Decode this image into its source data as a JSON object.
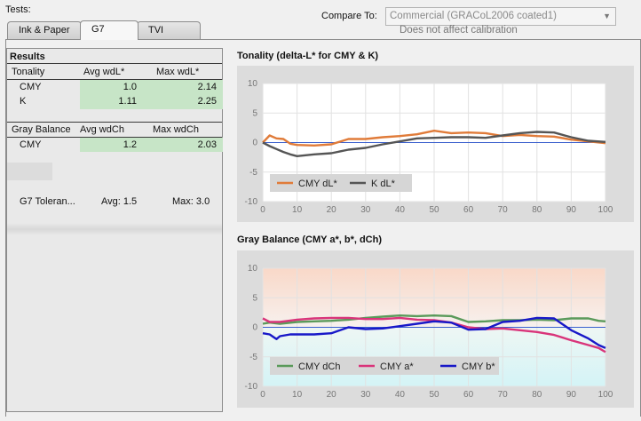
{
  "header": {
    "tests_label": "Tests:",
    "tabs": [
      {
        "label": "Ink & Paper",
        "active": false
      },
      {
        "label": "G7",
        "active": true
      },
      {
        "label": "TVI",
        "active": false
      }
    ],
    "compare_label": "Compare To:",
    "compare_value": "Commercial (GRACoL2006 coated1)",
    "compare_note": "Does not affect calibration"
  },
  "results": {
    "title": "Results",
    "tonality": {
      "headers": [
        "Tonality",
        "Avg wdL*",
        "Max wdL*"
      ],
      "rows": [
        {
          "label": "CMY",
          "avg": "1.0",
          "max": "2.14"
        },
        {
          "label": "K",
          "avg": "1.11",
          "max": "2.25"
        }
      ]
    },
    "gray_balance": {
      "headers": [
        "Gray Balance",
        "Avg wdCh",
        "Max wdCh"
      ],
      "rows": [
        {
          "label": "CMY",
          "avg": "1.2",
          "max": "2.03"
        }
      ]
    },
    "tolerance": {
      "label": "G7 Toleran...",
      "avg": "Avg: 1.5",
      "max": "Max: 3.0"
    }
  },
  "colors": {
    "cmy_dl": "#e07b39",
    "k_dl": "#555555",
    "cmy_dch": "#5a9a5a",
    "cmy_a": "#d9347a",
    "cmy_b": "#1818c8",
    "highlight": "#c7e5c7"
  },
  "chart_data": [
    {
      "type": "line",
      "title": "Tonality (delta-L* for CMY & K)",
      "xlim": [
        0,
        100
      ],
      "ylim": [
        -10,
        10
      ],
      "xticks": [
        "0",
        "10",
        "20",
        "30",
        "40",
        "50",
        "60",
        "70",
        "80",
        "90",
        "100"
      ],
      "yticks": [
        "10",
        "5",
        "0",
        "-5",
        "-10"
      ],
      "legend_position": "bottom-left",
      "series": [
        {
          "name": "CMY dL*",
          "color": "#e07b39",
          "x": [
            0,
            2,
            4,
            6,
            8,
            10,
            15,
            20,
            25,
            30,
            35,
            40,
            45,
            50,
            55,
            60,
            65,
            70,
            75,
            80,
            85,
            90,
            95,
            100
          ],
          "y": [
            0,
            1.2,
            0.7,
            0.6,
            -0.2,
            -0.4,
            -0.5,
            -0.3,
            0.6,
            0.6,
            0.9,
            1.1,
            1.4,
            2.0,
            1.6,
            1.7,
            1.6,
            1.1,
            1.3,
            1.1,
            1.0,
            0.5,
            0.2,
            -0.1
          ]
        },
        {
          "name": "K dL*",
          "color": "#555555",
          "x": [
            0,
            2,
            4,
            6,
            8,
            10,
            15,
            20,
            25,
            30,
            35,
            40,
            45,
            50,
            55,
            60,
            65,
            70,
            75,
            80,
            85,
            90,
            95,
            100
          ],
          "y": [
            0,
            -0.6,
            -1.1,
            -1.6,
            -2.0,
            -2.3,
            -2.0,
            -1.8,
            -1.2,
            -0.9,
            -0.3,
            0.2,
            0.7,
            0.8,
            0.9,
            0.9,
            0.8,
            1.2,
            1.6,
            1.8,
            1.7,
            0.9,
            0.3,
            0.1
          ]
        }
      ]
    },
    {
      "type": "line",
      "title": "Gray Balance (CMY a*, b*, dCh)",
      "xlim": [
        0,
        100
      ],
      "ylim": [
        -10,
        10
      ],
      "xticks": [
        "0",
        "10",
        "20",
        "30",
        "40",
        "50",
        "60",
        "70",
        "80",
        "90",
        "100"
      ],
      "yticks": [
        "10",
        "5",
        "0",
        "-5",
        "-10"
      ],
      "legend_position": "bottom-left",
      "series": [
        {
          "name": "CMY dCh",
          "color": "#5a9a5a",
          "x": [
            0,
            2,
            5,
            10,
            15,
            20,
            25,
            30,
            35,
            40,
            45,
            50,
            55,
            60,
            65,
            70,
            75,
            80,
            85,
            90,
            95,
            98,
            100
          ],
          "y": [
            0.6,
            0.8,
            0.6,
            0.9,
            1.0,
            1.1,
            1.3,
            1.6,
            1.8,
            2.0,
            1.9,
            2.0,
            1.9,
            0.9,
            1.0,
            1.2,
            1.2,
            1.3,
            1.2,
            1.5,
            1.5,
            1.1,
            1.0
          ]
        },
        {
          "name": "CMY a*",
          "color": "#d9347a",
          "x": [
            0,
            2,
            5,
            10,
            15,
            20,
            25,
            30,
            35,
            40,
            45,
            50,
            55,
            60,
            65,
            70,
            75,
            80,
            85,
            90,
            95,
            98,
            100
          ],
          "y": [
            1.5,
            0.9,
            0.9,
            1.3,
            1.5,
            1.6,
            1.6,
            1.4,
            1.4,
            1.6,
            1.3,
            1.2,
            0.8,
            0.0,
            -0.3,
            -0.2,
            -0.5,
            -0.8,
            -1.3,
            -2.2,
            -3.0,
            -3.5,
            -4.2
          ]
        },
        {
          "name": "CMY b*",
          "color": "#1818c8",
          "x": [
            0,
            2,
            4,
            5,
            8,
            10,
            15,
            20,
            25,
            30,
            35,
            40,
            45,
            50,
            55,
            60,
            65,
            70,
            75,
            80,
            85,
            90,
            95,
            98,
            100
          ],
          "y": [
            -1.0,
            -1.2,
            -2.0,
            -1.5,
            -1.2,
            -1.2,
            -1.2,
            -1.0,
            0.0,
            -0.3,
            -0.2,
            0.2,
            0.6,
            1.0,
            0.8,
            -0.4,
            -0.3,
            0.9,
            1.1,
            1.6,
            1.5,
            -0.5,
            -1.9,
            -3.0,
            -3.5
          ]
        }
      ]
    }
  ]
}
